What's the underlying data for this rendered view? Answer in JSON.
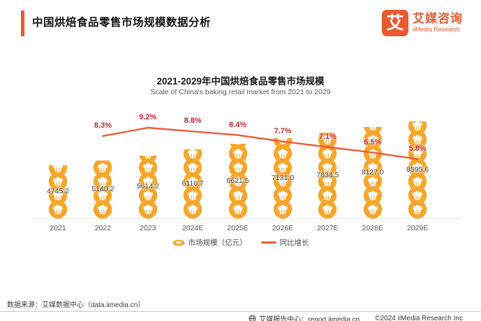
{
  "header": {
    "title": "中国烘焙食品零售市场规模数据分析"
  },
  "logo": {
    "mark": "艾",
    "name_cn": "艾媒咨询",
    "name_en": "iiMedia Research"
  },
  "chart_data": {
    "type": "bar",
    "subtype": "pictorial-bar-with-line",
    "title": "2021-2029年中国烘焙食品零售市场规模",
    "subtitle": "Scale of China's baking retail market from 2021 to 2029",
    "categories": [
      "2021",
      "2022",
      "2023",
      "2024E",
      "2025E",
      "2026E",
      "2027E",
      "2028E",
      "2029E"
    ],
    "series": [
      {
        "name": "市场规模（亿元）",
        "type": "bar",
        "icon": "cupcake",
        "unit": "亿元",
        "values": [
          4745.2,
          5140.2,
          5614.2,
          6110.7,
          6621.5,
          7131.0,
          7634.5,
          8127.0,
          8595.6
        ]
      },
      {
        "name": "同比增长",
        "type": "line",
        "unit": "%",
        "values": [
          null,
          8.3,
          9.2,
          8.8,
          8.4,
          7.7,
          7.1,
          6.5,
          5.8
        ]
      }
    ],
    "legend_position": "bottom",
    "grid": false,
    "ylim": [
      0,
      8595.6
    ],
    "colors": {
      "bar": "#F5A62B",
      "line": "#EC5B35",
      "percent_label": "#C1272D"
    }
  },
  "footer": {
    "source": "数据来源：艾媒数据中心（data.iimedia.cn）",
    "report_center": "艾媒报告中心：report.iimedia.cn",
    "copyright": "©2024 iiMedia Research Inc"
  }
}
